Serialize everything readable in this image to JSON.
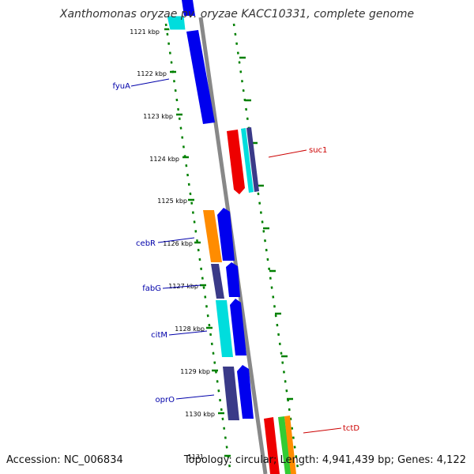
{
  "title": "Xanthomonas oryzae pv. oryzae KACC10331, complete genome",
  "footer": {
    "accession": "Accession: NC_006834",
    "summary": "Topology: circular; Length: 4,941,439 bp; Genes: 4,122"
  },
  "ticks": [
    "1121 kbp",
    "1122 kbp",
    "1123 kbp",
    "1124 kbp",
    "1125 kbp",
    "1126 kbp",
    "1127 kbp",
    "1128 kbp",
    "1129 kbp",
    "1130 kbp",
    "1131"
  ],
  "genes_left": [
    "fyuA",
    "cebR",
    "fabG",
    "citM",
    "oprO"
  ],
  "genes_right": [
    "suc1",
    "tctD"
  ],
  "colors": {
    "left_label": "#0000aa",
    "right_label": "#cc0000",
    "track_dots": "#008000",
    "backbone": "#888888",
    "blue": "#0000ee",
    "cyan": "#00dddd",
    "orange": "#ff8c00",
    "navy": "#3a3a88",
    "red": "#ee0000",
    "green": "#33cc33"
  }
}
